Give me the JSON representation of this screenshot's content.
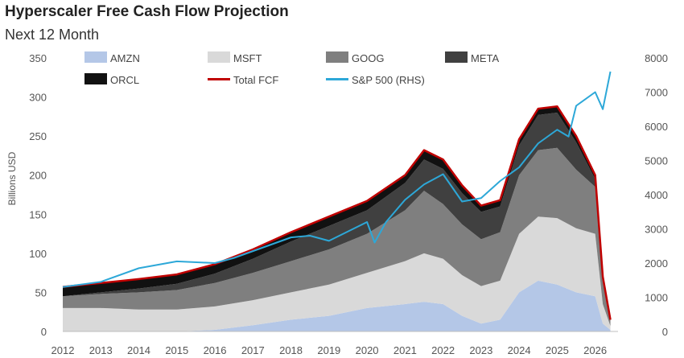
{
  "chart_data": {
    "type": "area",
    "title": "Hyperscaler Free Cash Flow Projection",
    "subtitle": "Next 12 Month",
    "ylabel": "Billions USD",
    "y2label": "",
    "ylim": [
      0,
      350
    ],
    "y2lim": [
      0,
      8000
    ],
    "yticks": [
      0,
      50,
      100,
      150,
      200,
      250,
      300,
      350
    ],
    "y2ticks": [
      0,
      1000,
      2000,
      3000,
      4000,
      5000,
      6000,
      7000,
      8000
    ],
    "xlim": [
      2012,
      2026.6
    ],
    "xticks": [
      "2012",
      "2013",
      "2014",
      "2015",
      "2016",
      "2017",
      "2018",
      "2019",
      "2020",
      "2021",
      "2022",
      "2023",
      "2024",
      "2025",
      "2026"
    ],
    "legend": "top",
    "x": [
      2012.0,
      2013.0,
      2014.0,
      2015.0,
      2016.0,
      2017.0,
      2018.0,
      2019.0,
      2020.0,
      2021.0,
      2021.5,
      2022.0,
      2022.5,
      2023.0,
      2023.5,
      2024.0,
      2024.5,
      2025.0,
      2025.5,
      2026.0,
      2026.2,
      2026.4
    ],
    "series": [
      {
        "name": "AMZN",
        "color": "#b4c7e7",
        "values": [
          0,
          0,
          0,
          0,
          2,
          8,
          15,
          20,
          30,
          35,
          38,
          35,
          20,
          10,
          15,
          50,
          65,
          60,
          50,
          45,
          10,
          2
        ]
      },
      {
        "name": "MSFT",
        "color": "#d9d9d9",
        "values": [
          30,
          30,
          28,
          28,
          30,
          32,
          35,
          40,
          45,
          55,
          62,
          58,
          52,
          48,
          50,
          75,
          82,
          85,
          82,
          80,
          25,
          5
        ]
      },
      {
        "name": "GOOG",
        "color": "#7f7f7f",
        "values": [
          15,
          18,
          22,
          25,
          30,
          35,
          40,
          45,
          50,
          65,
          80,
          70,
          65,
          60,
          62,
          75,
          85,
          90,
          75,
          60,
          30,
          8
        ]
      },
      {
        "name": "META",
        "color": "#404040",
        "values": [
          0,
          2,
          5,
          8,
          12,
          18,
          25,
          30,
          30,
          35,
          40,
          45,
          40,
          35,
          33,
          38,
          45,
          45,
          35,
          10,
          3,
          0
        ]
      },
      {
        "name": "ORCL",
        "color": "#111111",
        "values": [
          12,
          12,
          12,
          12,
          12,
          12,
          12,
          12,
          12,
          10,
          12,
          12,
          10,
          8,
          8,
          8,
          8,
          8,
          8,
          5,
          2,
          0
        ]
      },
      {
        "name": "Total FCF",
        "color": "#c00000",
        "type": "line",
        "values": [
          57,
          62,
          67,
          73,
          86,
          105,
          127,
          147,
          167,
          200,
          232,
          220,
          187,
          161,
          168,
          246,
          285,
          288,
          250,
          200,
          70,
          15
        ]
      },
      {
        "name": "S&P 500 (RHS)",
        "color": "#2da8d8",
        "type": "line",
        "axis": "right",
        "x": [
          2012.0,
          2013.0,
          2014.0,
          2015.0,
          2016.0,
          2016.5,
          2017.0,
          2018.0,
          2018.5,
          2019.0,
          2020.0,
          2020.2,
          2020.5,
          2021.0,
          2021.5,
          2022.0,
          2022.5,
          2023.0,
          2023.5,
          2024.0,
          2024.5,
          2025.0,
          2025.3,
          2025.5,
          2026.0,
          2026.2,
          2026.4
        ],
        "values": [
          1300,
          1450,
          1850,
          2050,
          2000,
          2150,
          2350,
          2750,
          2800,
          2650,
          3200,
          2600,
          3200,
          3850,
          4300,
          4600,
          3800,
          3900,
          4400,
          4800,
          5500,
          5900,
          5700,
          6600,
          7000,
          6500,
          7600
        ]
      }
    ]
  }
}
